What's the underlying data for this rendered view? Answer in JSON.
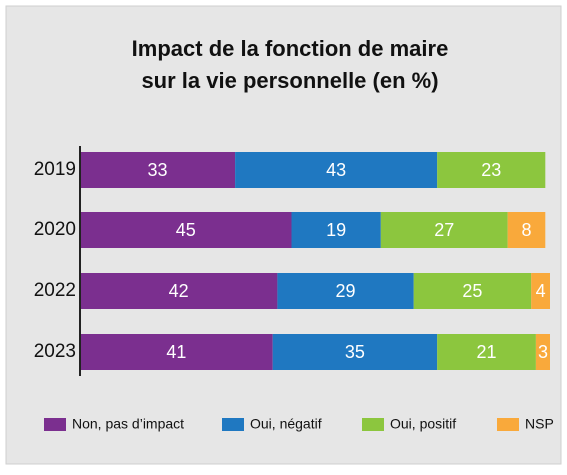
{
  "chart_data": {
    "type": "stacked-barh",
    "title": [
      "Impact de la fonction de maire",
      "sur la vie personnelle (en %)"
    ],
    "categories": [
      "2019",
      "2020",
      "2022",
      "2023"
    ],
    "series": [
      {
        "name": "Non, pas d’impact",
        "color": "#7b2f8f",
        "values": [
          33,
          45,
          42,
          41
        ]
      },
      {
        "name": "Oui, négatif",
        "color": "#1f78c1",
        "values": [
          43,
          19,
          29,
          35
        ]
      },
      {
        "name": "Oui, positif",
        "color": "#8cc63e",
        "values": [
          23,
          27,
          25,
          21
        ]
      },
      {
        "name": "NSP",
        "color": "#f9a93b",
        "values": [
          null,
          8,
          4,
          3
        ]
      }
    ],
    "xlim": [
      0,
      100
    ],
    "legend": "bottom"
  }
}
